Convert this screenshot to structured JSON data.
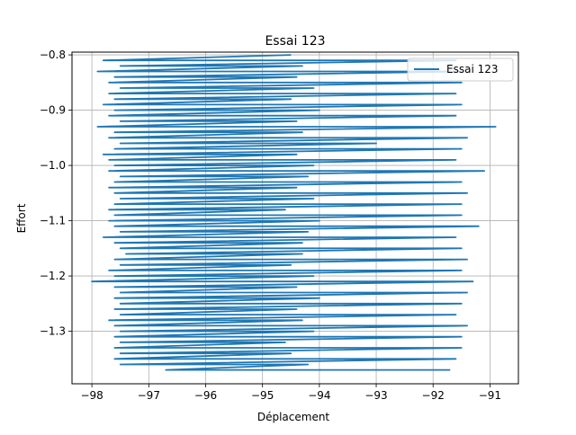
{
  "chart_data": {
    "type": "line",
    "title": "Essai 123",
    "xlabel": "Déplacement",
    "ylabel": "Effort",
    "xlim": [
      -98.35,
      -90.5
    ],
    "ylim": [
      -1.395,
      -0.795
    ],
    "x_ticks": [
      -98,
      -97,
      -96,
      -95,
      -94,
      -93,
      -92,
      -91
    ],
    "x_tick_labels": [
      "−98",
      "−97",
      "−96",
      "−95",
      "−94",
      "−93",
      "−92",
      "−91"
    ],
    "y_ticks": [
      -0.8,
      -0.9,
      -1.0,
      -1.1,
      -1.2,
      -1.3
    ],
    "y_tick_labels": [
      "−0.8",
      "−0.9",
      "−1.0",
      "−1.1",
      "−1.2",
      "−1.3"
    ],
    "grid": true,
    "legend_position": "top-right",
    "series": [
      {
        "name": "Essai 123",
        "color": "#1f77b4",
        "points": [
          [
            -94.5,
            -0.8
          ],
          [
            -97.8,
            -0.81
          ],
          [
            -91.6,
            -0.81
          ],
          [
            -97.5,
            -0.82
          ],
          [
            -94.3,
            -0.82
          ],
          [
            -97.9,
            -0.83
          ],
          [
            -91.5,
            -0.83
          ],
          [
            -97.6,
            -0.84
          ],
          [
            -94.4,
            -0.84
          ],
          [
            -97.7,
            -0.85
          ],
          [
            -91.5,
            -0.85
          ],
          [
            -97.5,
            -0.86
          ],
          [
            -94.1,
            -0.86
          ],
          [
            -97.7,
            -0.87
          ],
          [
            -91.6,
            -0.87
          ],
          [
            -97.6,
            -0.88
          ],
          [
            -94.5,
            -0.88
          ],
          [
            -97.8,
            -0.89
          ],
          [
            -91.5,
            -0.89
          ],
          [
            -97.6,
            -0.9
          ],
          [
            -94.0,
            -0.9
          ],
          [
            -97.7,
            -0.91
          ],
          [
            -91.6,
            -0.91
          ],
          [
            -97.5,
            -0.92
          ],
          [
            -94.4,
            -0.92
          ],
          [
            -97.9,
            -0.93
          ],
          [
            -90.9,
            -0.93
          ],
          [
            -97.6,
            -0.94
          ],
          [
            -94.3,
            -0.94
          ],
          [
            -97.7,
            -0.95
          ],
          [
            -91.4,
            -0.95
          ],
          [
            -97.5,
            -0.96
          ],
          [
            -93.0,
            -0.96
          ],
          [
            -97.6,
            -0.97
          ],
          [
            -91.5,
            -0.97
          ],
          [
            -97.8,
            -0.98
          ],
          [
            -94.4,
            -0.98
          ],
          [
            -97.7,
            -0.99
          ],
          [
            -91.6,
            -0.99
          ],
          [
            -97.6,
            -1.0
          ],
          [
            -94.1,
            -1.0
          ],
          [
            -97.7,
            -1.01
          ],
          [
            -91.1,
            -1.01
          ],
          [
            -97.5,
            -1.02
          ],
          [
            -94.2,
            -1.02
          ],
          [
            -97.6,
            -1.03
          ],
          [
            -91.5,
            -1.03
          ],
          [
            -97.7,
            -1.04
          ],
          [
            -94.4,
            -1.04
          ],
          [
            -97.6,
            -1.05
          ],
          [
            -91.4,
            -1.05
          ],
          [
            -97.5,
            -1.06
          ],
          [
            -94.1,
            -1.06
          ],
          [
            -97.6,
            -1.07
          ],
          [
            -91.5,
            -1.07
          ],
          [
            -97.7,
            -1.08
          ],
          [
            -94.6,
            -1.08
          ],
          [
            -97.6,
            -1.09
          ],
          [
            -91.5,
            -1.09
          ],
          [
            -97.7,
            -1.1
          ],
          [
            -94.0,
            -1.1
          ],
          [
            -97.6,
            -1.11
          ],
          [
            -91.2,
            -1.11
          ],
          [
            -97.5,
            -1.12
          ],
          [
            -94.2,
            -1.12
          ],
          [
            -97.8,
            -1.13
          ],
          [
            -91.6,
            -1.13
          ],
          [
            -97.6,
            -1.14
          ],
          [
            -94.3,
            -1.14
          ],
          [
            -97.5,
            -1.15
          ],
          [
            -91.5,
            -1.15
          ],
          [
            -97.4,
            -1.16
          ],
          [
            -94.3,
            -1.16
          ],
          [
            -97.6,
            -1.17
          ],
          [
            -91.4,
            -1.17
          ],
          [
            -97.5,
            -1.18
          ],
          [
            -94.5,
            -1.18
          ],
          [
            -97.7,
            -1.19
          ],
          [
            -91.5,
            -1.19
          ],
          [
            -97.6,
            -1.2
          ],
          [
            -94.1,
            -1.2
          ],
          [
            -98.0,
            -1.21
          ],
          [
            -91.3,
            -1.21
          ],
          [
            -97.6,
            -1.22
          ],
          [
            -94.4,
            -1.22
          ],
          [
            -97.5,
            -1.23
          ],
          [
            -91.4,
            -1.23
          ],
          [
            -97.6,
            -1.24
          ],
          [
            -94.0,
            -1.24
          ],
          [
            -97.5,
            -1.25
          ],
          [
            -91.5,
            -1.25
          ],
          [
            -97.6,
            -1.26
          ],
          [
            -94.4,
            -1.26
          ],
          [
            -97.5,
            -1.27
          ],
          [
            -91.6,
            -1.27
          ],
          [
            -97.7,
            -1.28
          ],
          [
            -94.3,
            -1.28
          ],
          [
            -97.6,
            -1.29
          ],
          [
            -91.4,
            -1.29
          ],
          [
            -97.5,
            -1.3
          ],
          [
            -94.1,
            -1.3
          ],
          [
            -97.6,
            -1.31
          ],
          [
            -91.5,
            -1.31
          ],
          [
            -97.5,
            -1.32
          ],
          [
            -94.6,
            -1.32
          ],
          [
            -97.6,
            -1.33
          ],
          [
            -91.5,
            -1.33
          ],
          [
            -97.5,
            -1.34
          ],
          [
            -94.5,
            -1.34
          ],
          [
            -97.6,
            -1.35
          ],
          [
            -91.6,
            -1.35
          ],
          [
            -97.5,
            -1.36
          ],
          [
            -94.2,
            -1.36
          ],
          [
            -96.7,
            -1.37
          ],
          [
            -91.7,
            -1.37
          ]
        ]
      }
    ]
  }
}
